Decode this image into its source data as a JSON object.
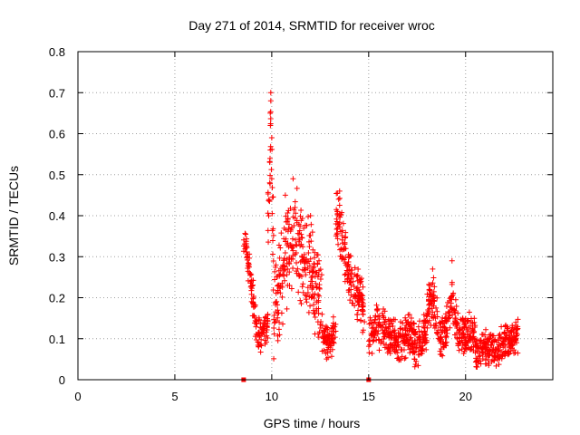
{
  "chart_data": {
    "type": "scatter",
    "title": "Day 271 of 2014, SRMTID for receiver wroc",
    "xlabel": "GPS time / hours",
    "ylabel": "SRMTID / TECUs",
    "xlim": [
      0,
      24.5
    ],
    "ylim": [
      0,
      0.8
    ],
    "x_ticks": [
      0,
      5,
      10,
      15,
      20
    ],
    "x_tick_labels": [
      "0",
      "5",
      "10",
      "15",
      "20"
    ],
    "y_ticks": [
      0,
      0.1,
      0.2,
      0.3,
      0.4,
      0.5,
      0.6,
      0.7,
      0.8
    ],
    "y_tick_labels": [
      "0",
      "0.1",
      "0.2",
      "0.3",
      "0.4",
      "0.5",
      "0.6",
      "0.7",
      "0.8"
    ],
    "grid": true,
    "marker": "+",
    "marker_color": "#ff0000",
    "zero_markers_x": [
      8.55,
      15.0
    ],
    "series": [
      {
        "name": "SRMTID",
        "segments": [
          {
            "x_start": 8.55,
            "x_end": 9.15,
            "envelope": [
              [
                8.55,
                0.34
              ],
              [
                8.7,
                0.31
              ],
              [
                8.85,
                0.27
              ],
              [
                9.0,
                0.21
              ],
              [
                9.15,
                0.16
              ]
            ],
            "spread": 0.06
          },
          {
            "x_start": 9.15,
            "x_end": 9.8,
            "envelope": [
              [
                9.15,
                0.14
              ],
              [
                9.4,
                0.11
              ],
              [
                9.6,
                0.12
              ],
              [
                9.8,
                0.13
              ]
            ],
            "spread": 0.05
          },
          {
            "x_start": 9.8,
            "x_end": 10.1,
            "envelope": [
              [
                9.85,
                0.4
              ],
              [
                9.95,
                0.62
              ],
              [
                10.0,
                0.5
              ],
              [
                10.1,
                0.28
              ]
            ],
            "spread": 0.12
          },
          {
            "x_start": 10.1,
            "x_end": 12.6,
            "envelope": [
              [
                10.1,
                0.18
              ],
              [
                10.5,
                0.25
              ],
              [
                10.9,
                0.32
              ],
              [
                11.2,
                0.35
              ],
              [
                11.5,
                0.3
              ],
              [
                11.9,
                0.28
              ],
              [
                12.2,
                0.25
              ],
              [
                12.6,
                0.15
              ]
            ],
            "spread": 0.14
          },
          {
            "x_start": 12.6,
            "x_end": 13.3,
            "envelope": [
              [
                12.6,
                0.11
              ],
              [
                12.9,
                0.09
              ],
              [
                13.1,
                0.1
              ],
              [
                13.3,
                0.12
              ]
            ],
            "spread": 0.05
          },
          {
            "x_start": 13.3,
            "x_end": 14.0,
            "envelope": [
              [
                13.3,
                0.4
              ],
              [
                13.5,
                0.38
              ],
              [
                13.7,
                0.32
              ],
              [
                14.0,
                0.26
              ]
            ],
            "spread": 0.08
          },
          {
            "x_start": 14.0,
            "x_end": 14.8,
            "envelope": [
              [
                14.0,
                0.25
              ],
              [
                14.3,
                0.22
              ],
              [
                14.6,
                0.2
              ],
              [
                14.8,
                0.15
              ]
            ],
            "spread": 0.07
          },
          {
            "x_start": 15.0,
            "x_end": 18.0,
            "envelope": [
              [
                15.0,
                0.1
              ],
              [
                15.5,
                0.13
              ],
              [
                16.0,
                0.11
              ],
              [
                16.5,
                0.09
              ],
              [
                17.0,
                0.11
              ],
              [
                17.5,
                0.08
              ],
              [
                18.0,
                0.12
              ]
            ],
            "spread": 0.06
          },
          {
            "x_start": 18.0,
            "x_end": 18.6,
            "envelope": [
              [
                18.0,
                0.16
              ],
              [
                18.3,
                0.2
              ],
              [
                18.6,
                0.14
              ]
            ],
            "spread": 0.07
          },
          {
            "x_start": 18.6,
            "x_end": 20.5,
            "envelope": [
              [
                18.6,
                0.1
              ],
              [
                19.0,
                0.12
              ],
              [
                19.3,
                0.2
              ],
              [
                19.6,
                0.11
              ],
              [
                20.0,
                0.12
              ],
              [
                20.5,
                0.1
              ]
            ],
            "spread": 0.06
          },
          {
            "x_start": 20.5,
            "x_end": 22.7,
            "envelope": [
              [
                20.5,
                0.07
              ],
              [
                21.0,
                0.08
              ],
              [
                21.5,
                0.07
              ],
              [
                22.0,
                0.09
              ],
              [
                22.7,
                0.11
              ]
            ],
            "spread": 0.05
          }
        ],
        "peaks": [
          [
            9.95,
            0.7
          ],
          [
            9.95,
            0.68
          ],
          [
            9.92,
            0.65
          ],
          [
            10.0,
            0.59
          ],
          [
            9.9,
            0.53
          ],
          [
            10.0,
            0.49
          ],
          [
            11.1,
            0.49
          ],
          [
            10.7,
            0.45
          ],
          [
            11.2,
            0.42
          ],
          [
            13.5,
            0.46
          ],
          [
            13.45,
            0.44
          ],
          [
            12.0,
            0.4
          ],
          [
            12.1,
            0.36
          ],
          [
            19.3,
            0.29
          ],
          [
            18.3,
            0.27
          ]
        ]
      }
    ]
  }
}
